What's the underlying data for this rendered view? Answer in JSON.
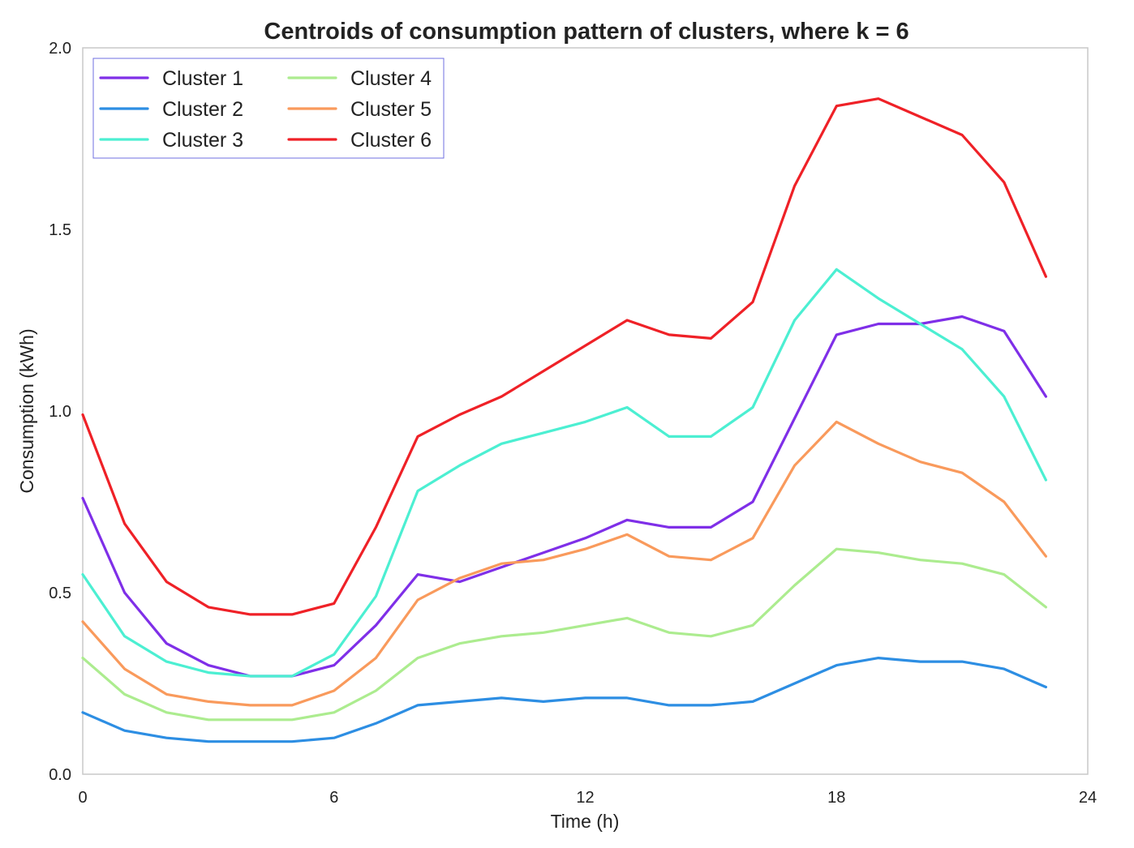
{
  "chart_data": {
    "type": "line",
    "title": "Centroids of consumption pattern of clusters, where k = 6",
    "xlabel": "Time (h)",
    "ylabel": "Consumption (kWh)",
    "xlim": [
      0,
      24
    ],
    "ylim": [
      0.0,
      2.0
    ],
    "xticks": [
      0,
      6,
      12,
      18,
      24
    ],
    "xtick_labels": [
      "0",
      "6",
      "12",
      "18",
      "24"
    ],
    "yticks": [
      0.0,
      0.5,
      1.0,
      1.5,
      2.0
    ],
    "ytick_labels": [
      "0.0",
      "0.5",
      "1.0",
      "1.5",
      "2.0"
    ],
    "grid": false,
    "legend_position": "top-left",
    "x": [
      0,
      1,
      2,
      3,
      4,
      5,
      6,
      7,
      8,
      9,
      10,
      11,
      12,
      13,
      14,
      15,
      16,
      17,
      18,
      19,
      20,
      21,
      22,
      23
    ],
    "series": [
      {
        "name": "Cluster 1",
        "color": "#7f2fe8",
        "values": [
          0.76,
          0.5,
          0.36,
          0.3,
          0.27,
          0.27,
          0.3,
          0.41,
          0.55,
          0.53,
          0.57,
          0.61,
          0.65,
          0.7,
          0.68,
          0.68,
          0.75,
          0.98,
          1.21,
          1.24,
          1.24,
          1.26,
          1.22,
          1.04
        ]
      },
      {
        "name": "Cluster 2",
        "color": "#2d8ee3",
        "values": [
          0.17,
          0.12,
          0.1,
          0.09,
          0.09,
          0.09,
          0.1,
          0.14,
          0.19,
          0.2,
          0.21,
          0.2,
          0.21,
          0.21,
          0.19,
          0.19,
          0.2,
          0.25,
          0.3,
          0.32,
          0.31,
          0.31,
          0.29,
          0.24
        ]
      },
      {
        "name": "Cluster 3",
        "color": "#4cefd2",
        "values": [
          0.55,
          0.38,
          0.31,
          0.28,
          0.27,
          0.27,
          0.33,
          0.49,
          0.78,
          0.85,
          0.91,
          0.94,
          0.97,
          1.01,
          0.93,
          0.93,
          1.01,
          1.25,
          1.39,
          1.31,
          1.24,
          1.17,
          1.04,
          0.81
        ]
      },
      {
        "name": "Cluster 4",
        "color": "#acec8f",
        "values": [
          0.32,
          0.22,
          0.17,
          0.15,
          0.15,
          0.15,
          0.17,
          0.23,
          0.32,
          0.36,
          0.38,
          0.39,
          0.41,
          0.43,
          0.39,
          0.38,
          0.41,
          0.52,
          0.62,
          0.61,
          0.59,
          0.58,
          0.55,
          0.46
        ]
      },
      {
        "name": "Cluster 5",
        "color": "#f99a5c",
        "values": [
          0.42,
          0.29,
          0.22,
          0.2,
          0.19,
          0.19,
          0.23,
          0.32,
          0.48,
          0.54,
          0.58,
          0.59,
          0.62,
          0.66,
          0.6,
          0.59,
          0.65,
          0.85,
          0.97,
          0.91,
          0.86,
          0.83,
          0.75,
          0.6
        ]
      },
      {
        "name": "Cluster 6",
        "color": "#ef2127",
        "values": [
          0.99,
          0.69,
          0.53,
          0.46,
          0.44,
          0.44,
          0.47,
          0.68,
          0.93,
          0.99,
          1.04,
          1.11,
          1.18,
          1.25,
          1.21,
          1.2,
          1.3,
          1.62,
          1.84,
          1.86,
          1.81,
          1.76,
          1.63,
          1.37
        ]
      }
    ]
  }
}
